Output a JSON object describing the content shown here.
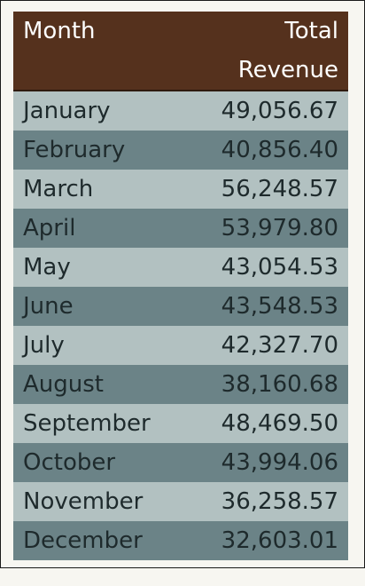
{
  "table": {
    "headers": {
      "month": "Month",
      "revenue": "Total Revenue"
    },
    "rows": [
      {
        "month": "January",
        "revenue": "49,056.67"
      },
      {
        "month": "February",
        "revenue": "40,856.40"
      },
      {
        "month": "March",
        "revenue": "56,248.57"
      },
      {
        "month": "April",
        "revenue": "53,979.80"
      },
      {
        "month": "May",
        "revenue": "43,054.53"
      },
      {
        "month": "June",
        "revenue": "43,548.53"
      },
      {
        "month": "July",
        "revenue": "42,327.70"
      },
      {
        "month": "August",
        "revenue": "38,160.68"
      },
      {
        "month": "September",
        "revenue": "48,469.50"
      },
      {
        "month": "October",
        "revenue": "43,994.06"
      },
      {
        "month": "November",
        "revenue": "36,258.57"
      },
      {
        "month": "December",
        "revenue": "32,603.01"
      }
    ]
  },
  "colors": {
    "header_bg": "#55311d",
    "row_light": "#b2c1c1",
    "row_dark": "#6b8387"
  }
}
